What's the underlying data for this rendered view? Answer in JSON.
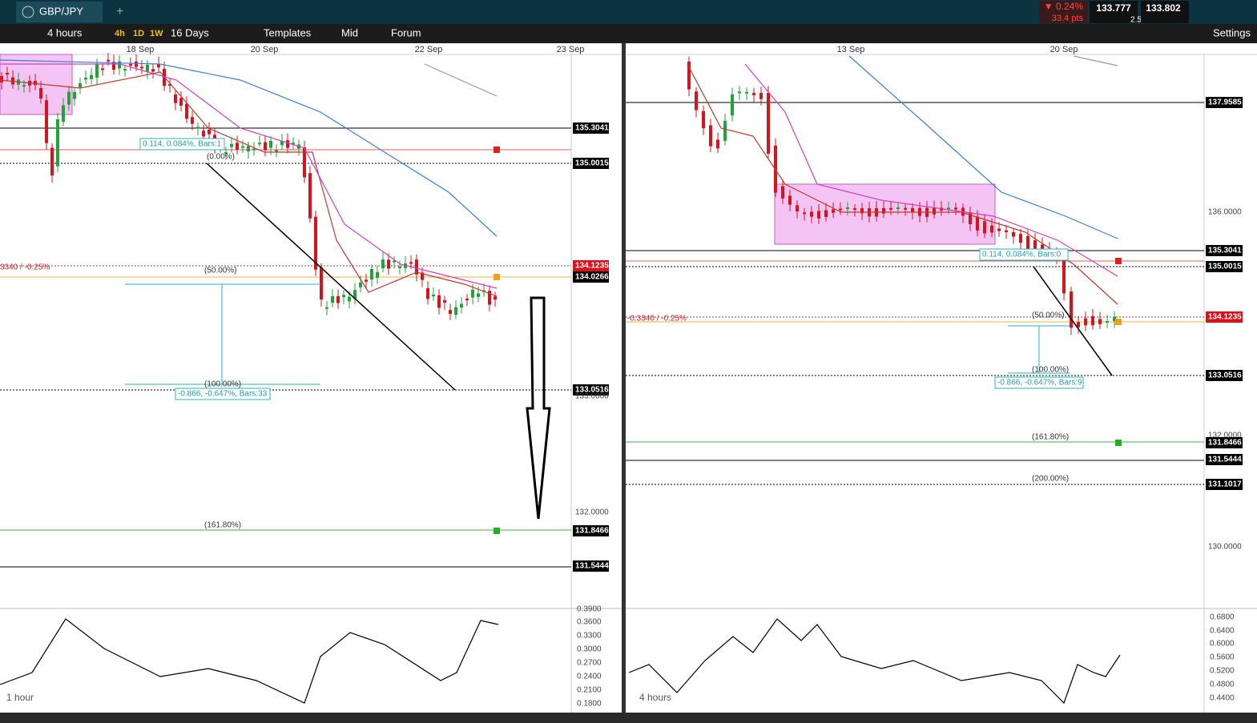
{
  "header": {
    "symbol": "GBP/JPY",
    "change": "▼ 0.24%",
    "points": "33.4 pts",
    "sell": "133.777",
    "spread": "2.5",
    "buy": "133.802"
  },
  "toolbar": {
    "interval": "4 hours",
    "buttons": [
      "4h",
      "1D",
      "1W"
    ],
    "range": "16 Days",
    "templates": "Templates",
    "price_type": "Mid",
    "forum": "Forum",
    "settings": "Settings"
  },
  "panels": [
    {
      "timeframe": "1 hour",
      "dates": [
        "18 Sep",
        "20 Sep",
        "22 Sep",
        "23 Sep"
      ],
      "price_labels": [
        "135.3041",
        "135.0015",
        "134.1235",
        "134.0266",
        "133.0516",
        "133.0000",
        "132.0000",
        "131.8466",
        "131.5444"
      ],
      "indicator_labels": [
        "0.3900",
        "0.3600",
        "0.3300",
        "0.3000",
        "0.2700",
        "0.2400",
        "0.2100",
        "0.1800"
      ],
      "annotations": [
        "0.114, 0.084%, Bars:1",
        "(0.00%)",
        "3340 / -0.25%",
        "(50.00%)",
        "(100.00%)",
        "-0.866, -0.647%, Bars:33",
        "(161.80%)"
      ]
    },
    {
      "timeframe": "4 hours",
      "dates": [
        "13 Sep",
        "20 Sep"
      ],
      "price_labels": [
        "137.9585",
        "136.0000",
        "135.3041",
        "135.0015",
        "134.1235",
        "133.0516",
        "132.0000",
        "131.8466",
        "131.5444",
        "131.1017",
        "130.0000"
      ],
      "indicator_labels": [
        "0.6800",
        "0.6400",
        "0.6000",
        "0.5600",
        "0.5200",
        "0.4800",
        "0.4400"
      ],
      "annotations": [
        "0.114, 0.084%, Bars:0",
        "-0.3340 / -0.25%",
        "(50.00%)",
        "(100.00%)",
        "-0.866, -0.647%, Bars:9",
        "(161.80%)",
        "(200.00%)"
      ]
    }
  ]
}
